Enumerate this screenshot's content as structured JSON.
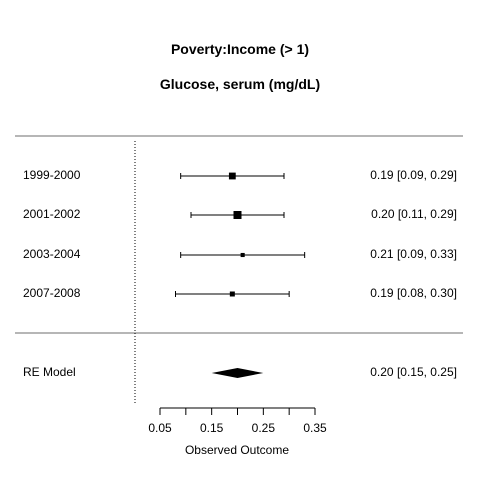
{
  "chart_data": {
    "type": "forest",
    "title": "Poverty:Income (> 1)",
    "subtitle": "Glucose, serum (mg/dL)",
    "xlabel": "Observed Outcome",
    "xlim": [
      0.05,
      0.35
    ],
    "xticks": [
      "0.05",
      "0.15",
      "0.25",
      "0.35"
    ],
    "reference_line": 0,
    "studies": [
      {
        "label": "1999-2000",
        "estimate": 0.19,
        "lower": 0.09,
        "upper": 0.29,
        "text": "0.19 [0.09, 0.29]",
        "weight": 0.8
      },
      {
        "label": "2001-2002",
        "estimate": 0.2,
        "lower": 0.11,
        "upper": 0.29,
        "text": "0.20 [0.11, 0.29]",
        "weight": 1.0
      },
      {
        "label": "2003-2004",
        "estimate": 0.21,
        "lower": 0.09,
        "upper": 0.33,
        "text": "0.21 [0.09, 0.33]",
        "weight": 0.35
      },
      {
        "label": "2007-2008",
        "estimate": 0.19,
        "lower": 0.08,
        "upper": 0.3,
        "text": "0.19 [0.08, 0.30]",
        "weight": 0.5
      }
    ],
    "summary": {
      "label": "RE Model",
      "estimate": 0.2,
      "lower": 0.15,
      "upper": 0.25,
      "text": "0.20 [0.15, 0.25]"
    }
  }
}
